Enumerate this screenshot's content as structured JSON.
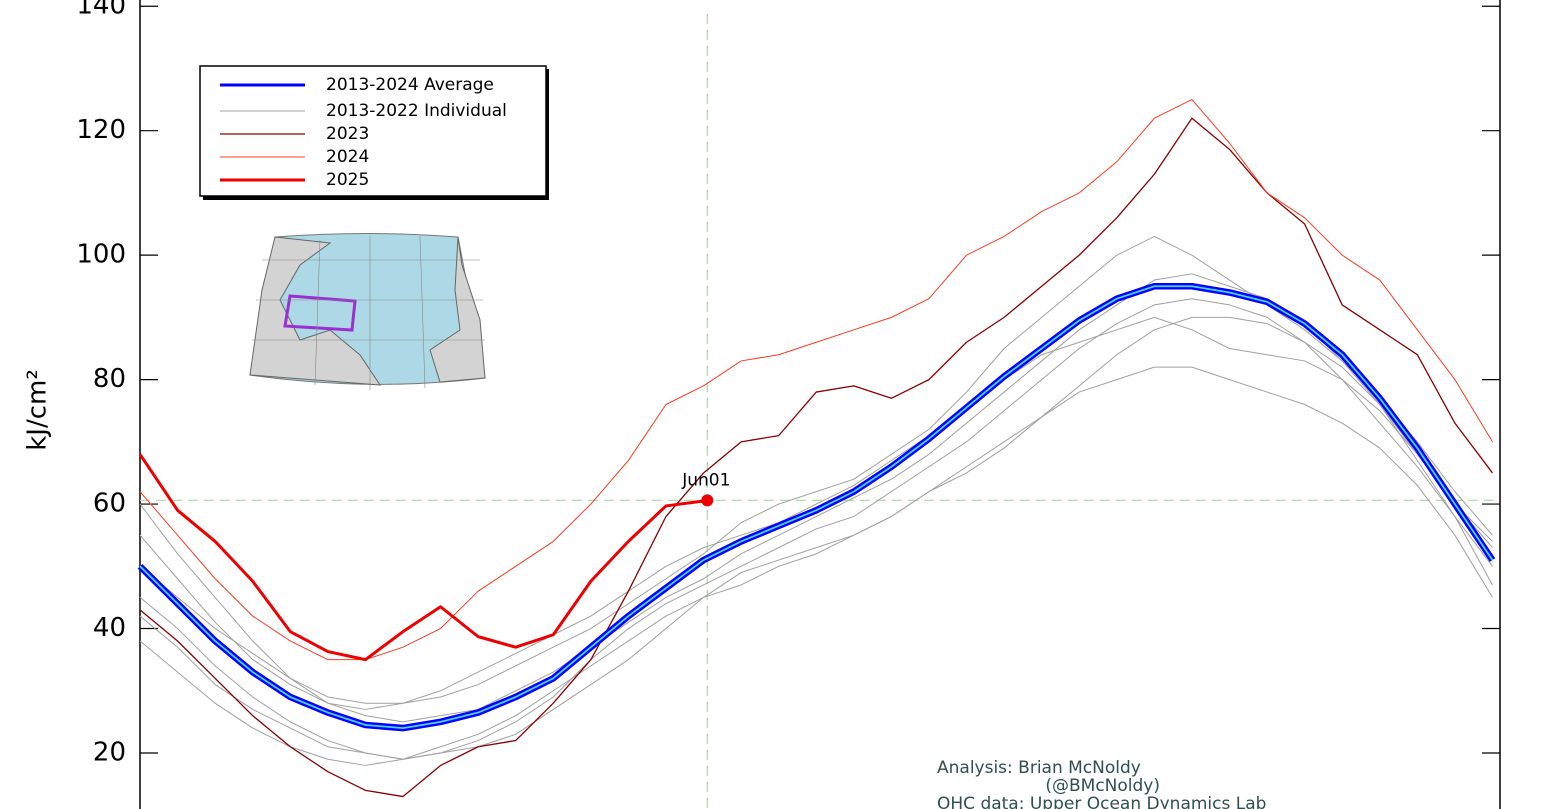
{
  "chart_data": {
    "type": "line",
    "ylabel": "kJ/cm²",
    "xlim": [
      1,
      363
    ],
    "ylim": [
      11,
      141
    ],
    "yticks": [
      20,
      40,
      60,
      80,
      100,
      120,
      140
    ],
    "x": [
      1,
      11,
      21,
      31,
      41,
      51,
      61,
      71,
      81,
      91,
      101,
      111,
      121,
      131,
      141,
      151,
      161,
      171,
      181,
      191,
      201,
      211,
      221,
      231,
      241,
      251,
      261,
      271,
      281,
      291,
      301,
      311,
      321,
      331,
      341,
      351,
      361
    ],
    "reference": {
      "x": 152,
      "y": 60.6,
      "label": "Jun01",
      "color": "#a8d8a8"
    },
    "series": [
      {
        "name": "2013-2024 Average",
        "color": "#0000ff",
        "width": 3,
        "values": [
          50,
          44,
          38,
          33,
          29,
          26.5,
          24.5,
          24,
          25,
          26.5,
          29,
          32,
          37,
          42,
          46.5,
          51,
          54,
          56.5,
          59,
          62,
          66,
          70.5,
          75.5,
          80.5,
          85,
          89.5,
          93,
          95,
          95,
          94,
          92.5,
          89,
          84,
          77,
          69,
          60,
          51
        ]
      },
      {
        "name": "2013-2022 Individual",
        "color": "#a0a0a0",
        "width": 1,
        "lines": [
          [
            60,
            52,
            45,
            38,
            32,
            28,
            26,
            25,
            26,
            27,
            30,
            33,
            37,
            41,
            45,
            48,
            52,
            55,
            58,
            61,
            64,
            68,
            73,
            78,
            83,
            88,
            92,
            96,
            97,
            95,
            93,
            89,
            83,
            76,
            68,
            60,
            54
          ],
          [
            45,
            40,
            34,
            29,
            25,
            22,
            20,
            19,
            20,
            22,
            25,
            29,
            35,
            40,
            44,
            47,
            50,
            53,
            56,
            58,
            62,
            66,
            70,
            75,
            80,
            85,
            89,
            92,
            93,
            92,
            90,
            86,
            80,
            73,
            66,
            58,
            50
          ],
          [
            55,
            48,
            41,
            35,
            31,
            28,
            27,
            28,
            30,
            33,
            36,
            39,
            42,
            46,
            50,
            53,
            55,
            57,
            60,
            63,
            67,
            71,
            76,
            80,
            84,
            86,
            88,
            90,
            88,
            85,
            84,
            83,
            80,
            75,
            68,
            60,
            53
          ],
          [
            38,
            33,
            28,
            24,
            21,
            19,
            18,
            19,
            21,
            23,
            26,
            30,
            34,
            38,
            42,
            45,
            47,
            50,
            52,
            55,
            58,
            62,
            65,
            69,
            74,
            79,
            84,
            88,
            90,
            90,
            89,
            86,
            82,
            76,
            67,
            58,
            47
          ],
          [
            50,
            45,
            40,
            36,
            32,
            29,
            28,
            28,
            29,
            31,
            34,
            37,
            40,
            44,
            48,
            52,
            57,
            60,
            62,
            64,
            68,
            72,
            78,
            85,
            90,
            95,
            100,
            103,
            100,
            96,
            92,
            88,
            83,
            77,
            70,
            62,
            55
          ],
          [
            42,
            37,
            31,
            27,
            24,
            21,
            20,
            19,
            20,
            21,
            23,
            27,
            31,
            35,
            40,
            45,
            49,
            51,
            53,
            55,
            58,
            62,
            66,
            70,
            74,
            78,
            80,
            82,
            82,
            80,
            78,
            76,
            73,
            69,
            63,
            55,
            45
          ]
        ]
      },
      {
        "name": "2023",
        "color": "#8b0000",
        "width": 1.3,
        "values": [
          43,
          38,
          32,
          26,
          21,
          17,
          14,
          13,
          18,
          21,
          22,
          28,
          35,
          46,
          58,
          65,
          70,
          71,
          78,
          79,
          77,
          80,
          86,
          90,
          95,
          100,
          106,
          113,
          122,
          117,
          110,
          105,
          92,
          88,
          84,
          73,
          65
        ]
      },
      {
        "name": "2024",
        "color": "#ff3b1f",
        "width": 1,
        "values": [
          62,
          55,
          48,
          42,
          38,
          35,
          35,
          37,
          40,
          46,
          50,
          54,
          60,
          67,
          76,
          79,
          83,
          84,
          86,
          88,
          90,
          93,
          100,
          103,
          107,
          110,
          115,
          122,
          125,
          118,
          110,
          106,
          100,
          96,
          88,
          80,
          70
        ]
      },
      {
        "name": "2025",
        "color": "#ee0000",
        "width": 3,
        "values": [
          68,
          59,
          54,
          47.6,
          39.5,
          36.3,
          35,
          39.5,
          43.5,
          38.7,
          37,
          39,
          47.6,
          54,
          59.7,
          60.5,
          null,
          null,
          null,
          null,
          null,
          null,
          null,
          null,
          null,
          null,
          null,
          null,
          null,
          null,
          null,
          null,
          null,
          null,
          null,
          null,
          null
        ]
      }
    ],
    "credits": [
      "Analysis: Brian McNoldy",
      "(@BMcNoldy)",
      "OHC data: Upper Ocean Dynamics Lab"
    ]
  }
}
